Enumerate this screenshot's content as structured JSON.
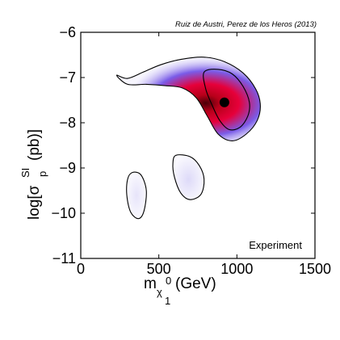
{
  "chart_data": {
    "type": "contour",
    "credit": "Ruiz de Austri, Perez de los Heros (2013)",
    "annotation": "Experiment",
    "xlabel": {
      "base": "m",
      "sub": "χ",
      "subsub": "1",
      "sup": "0",
      "unit": "(GeV)"
    },
    "ylabel": {
      "prefix": "log[σ",
      "sub": "p",
      "sup": "SI",
      "unit": "(pb)]"
    },
    "xlim": [
      0,
      1500
    ],
    "ylim": [
      -11,
      -6
    ],
    "xticks": [
      0,
      500,
      1000,
      1500
    ],
    "yticks": [
      -11,
      -10,
      -9,
      -8,
      -7,
      -6
    ],
    "best_fit": {
      "x": 920,
      "y": -7.55
    },
    "colormap": [
      "#ffffff",
      "#dcd8f8",
      "#7a5ce8",
      "#e6003a",
      "#b8001a",
      "#4a0008"
    ],
    "regions": [
      {
        "name": "main",
        "density_peak": 1.0,
        "outer_contour": [
          [
            230,
            -6.95
          ],
          [
            300,
            -7.02
          ],
          [
            400,
            -6.88
          ],
          [
            510,
            -6.72
          ],
          [
            640,
            -6.6
          ],
          [
            790,
            -6.55
          ],
          [
            920,
            -6.65
          ],
          [
            1040,
            -6.9
          ],
          [
            1120,
            -7.25
          ],
          [
            1150,
            -7.6
          ],
          [
            1130,
            -7.95
          ],
          [
            1060,
            -8.25
          ],
          [
            970,
            -8.4
          ],
          [
            880,
            -8.25
          ],
          [
            810,
            -7.85
          ],
          [
            740,
            -7.45
          ],
          [
            650,
            -7.23
          ],
          [
            540,
            -7.18
          ],
          [
            420,
            -7.15
          ],
          [
            300,
            -7.15
          ]
        ],
        "inner_contour": [
          [
            790,
            -6.88
          ],
          [
            880,
            -6.82
          ],
          [
            970,
            -6.92
          ],
          [
            1040,
            -7.2
          ],
          [
            1080,
            -7.55
          ],
          [
            1070,
            -7.85
          ],
          [
            1020,
            -8.1
          ],
          [
            950,
            -8.15
          ],
          [
            890,
            -7.95
          ],
          [
            840,
            -7.6
          ],
          [
            800,
            -7.25
          ]
        ]
      },
      {
        "name": "middle",
        "density_peak": 0.22,
        "outer_contour": [
          [
            610,
            -8.72
          ],
          [
            700,
            -8.75
          ],
          [
            760,
            -8.95
          ],
          [
            790,
            -9.25
          ],
          [
            770,
            -9.58
          ],
          [
            700,
            -9.7
          ],
          [
            640,
            -9.55
          ],
          [
            600,
            -9.2
          ],
          [
            590,
            -8.9
          ]
        ]
      },
      {
        "name": "lower-left",
        "density_peak": 0.12,
        "outer_contour": [
          [
            330,
            -9.1
          ],
          [
            385,
            -9.15
          ],
          [
            420,
            -9.5
          ],
          [
            405,
            -9.95
          ],
          [
            370,
            -10.12
          ],
          [
            320,
            -9.98
          ],
          [
            295,
            -9.6
          ],
          [
            300,
            -9.25
          ]
        ]
      }
    ]
  }
}
